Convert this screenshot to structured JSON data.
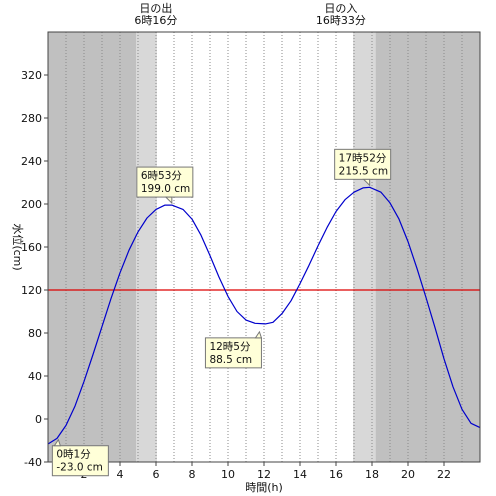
{
  "chart_data": {
    "type": "line",
    "xlabel": "時間(h)",
    "ylabel": "水位(cm)",
    "xlim": [
      0,
      24
    ],
    "ylim": [
      -40,
      360
    ],
    "x_ticks": [
      2,
      4,
      6,
      8,
      10,
      12,
      14,
      16,
      18,
      20,
      22
    ],
    "y_ticks": [
      -40,
      0,
      40,
      80,
      120,
      160,
      200,
      240,
      280,
      320
    ],
    "grid": "vertical dotted every 1h",
    "reference_line": {
      "value": 120,
      "color": "#dd0000"
    },
    "series": [
      {
        "color": "#0000cc",
        "x": [
          0.02,
          0.5,
          1,
          1.5,
          2,
          2.5,
          3,
          3.5,
          4,
          4.5,
          5,
          5.5,
          6,
          6.5,
          6.88,
          7.5,
          8,
          8.5,
          9,
          9.5,
          10,
          10.5,
          11,
          11.5,
          12.08,
          12.5,
          13,
          13.5,
          14,
          14.5,
          15,
          15.5,
          16,
          16.5,
          17,
          17.5,
          17.87,
          18.5,
          19,
          19.5,
          20,
          20.5,
          21,
          21.5,
          22,
          22.5,
          23,
          23.5,
          24
        ],
        "y": [
          -23,
          -18,
          -6,
          12,
          35,
          60,
          86,
          112,
          136,
          157,
          174,
          187,
          195,
          199,
          199,
          195,
          186,
          171,
          152,
          132,
          114,
          100,
          92,
          89,
          88.5,
          90,
          98,
          110,
          126,
          143,
          161,
          178,
          193,
          204,
          211,
          215,
          215.5,
          211,
          201,
          186,
          165,
          140,
          113,
          85,
          56,
          30,
          9,
          -4,
          -8
        ]
      }
    ],
    "annotations": [
      {
        "time": "0時1分",
        "value": "-23.0 cm",
        "x": 0.02,
        "y": -23.0
      },
      {
        "time": "6時53分",
        "value": "199.0 cm",
        "x": 6.88,
        "y": 199.0
      },
      {
        "time": "12時5分",
        "value": "88.5 cm",
        "x": 12.08,
        "y": 88.5
      },
      {
        "time": "17時52分",
        "value": "215.5 cm",
        "x": 17.87,
        "y": 215.5
      }
    ],
    "sun_events": [
      {
        "label": "日の出",
        "time": "6時16分",
        "x": 6.27
      },
      {
        "label": "日の入",
        "time": "16時33分",
        "x": 16.55
      }
    ],
    "shading": {
      "night_color": "#c0c0c0",
      "twilight_color": "#d8d8d8",
      "day_color": "#ffffff",
      "night_ranges": [
        [
          0,
          4.9
        ],
        [
          18.2,
          24
        ]
      ],
      "twilight_ranges": [
        [
          4.9,
          6.05
        ],
        [
          16.95,
          18.2
        ]
      ]
    }
  }
}
